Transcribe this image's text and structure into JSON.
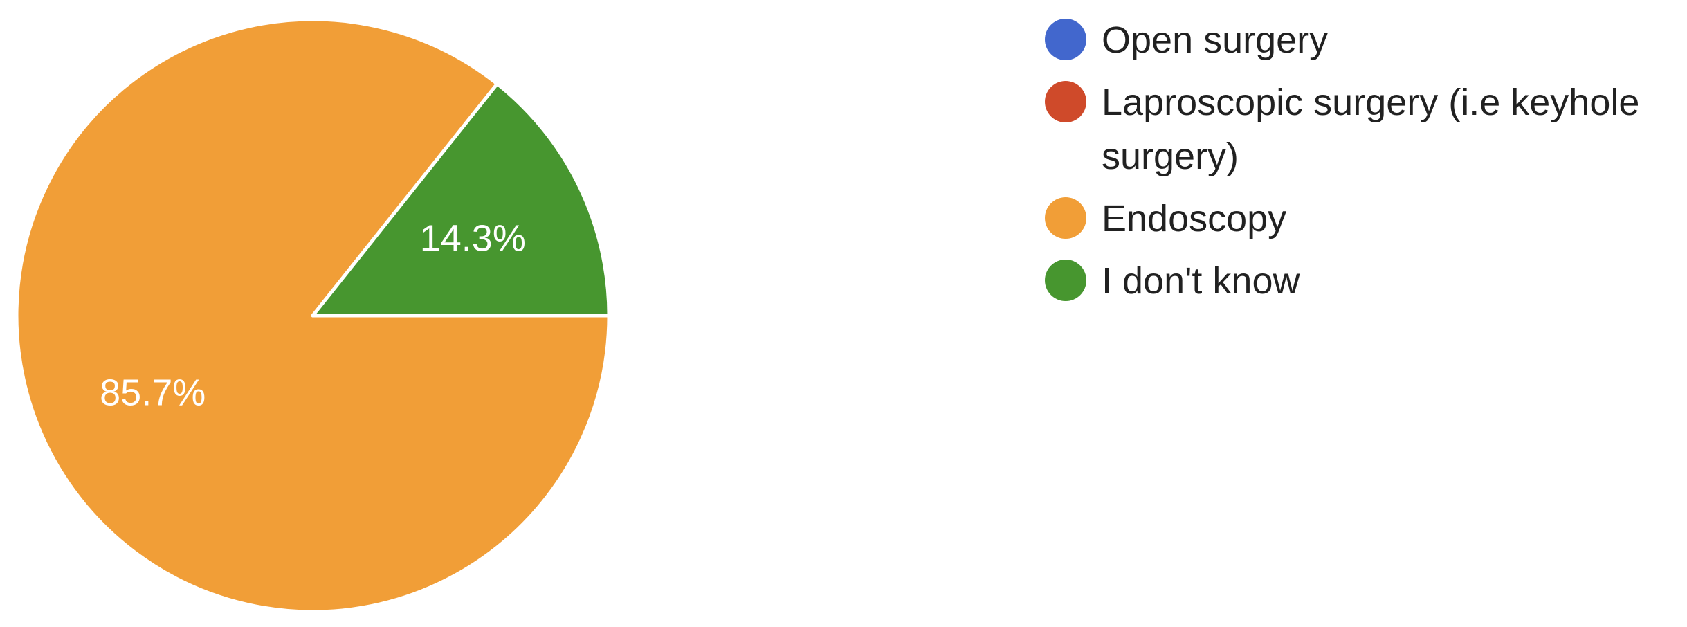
{
  "chart_data": {
    "type": "pie",
    "title": "",
    "legend_position": "right",
    "categories": [
      "Open surgery",
      "Laproscopic surgery (i.e keyhole surgery)",
      "Endoscopy",
      "I don't know"
    ],
    "values": [
      0,
      0,
      85.7,
      14.3
    ],
    "value_labels": [
      "",
      "",
      "85.7%",
      "14.3%"
    ],
    "colors": [
      "#4267cd",
      "#cf4a2a",
      "#f19e37",
      "#47962f"
    ],
    "legend_lines": [
      [
        "Open surgery"
      ],
      [
        "Laproscopic surgery (i.e keyhole",
        "surgery)"
      ],
      [
        "Endoscopy"
      ],
      [
        "I don't know"
      ]
    ]
  }
}
